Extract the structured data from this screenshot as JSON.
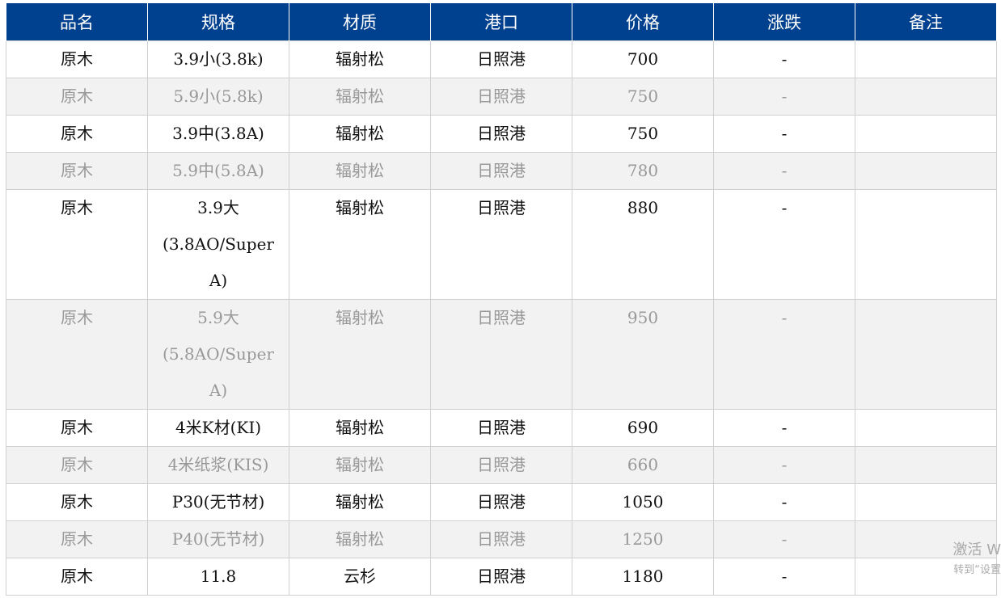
{
  "table": {
    "header": [
      "品名",
      "规格",
      "材质",
      "港口",
      "价格",
      "涨跌",
      "备注"
    ],
    "rows": [
      [
        "原木",
        "3.9小(3.8k)",
        "辐射松",
        "日照港",
        "700",
        "-"
      ],
      [
        "原木",
        "5.9小(5.8k)",
        "辐射松",
        "日照港",
        "750",
        "-"
      ],
      [
        "原木",
        "3.9中(3.8A)",
        "辐射松",
        "日照港",
        "750",
        "-"
      ],
      [
        "原木",
        "5.9中(5.8A)",
        "辐射松",
        "日照港",
        "780",
        "-"
      ],
      [
        "原木",
        "3.9大(3.8AO/Super A)",
        "辐射松",
        "日照港",
        "880",
        "-"
      ],
      [
        "原木",
        "5.9大(5.8AO/Super A)",
        "辐射松",
        "日照港",
        "950",
        "-"
      ],
      [
        "原木",
        "4米K材(KI)",
        "辐射松",
        "日照港",
        "690",
        "-"
      ],
      [
        "原木",
        "4米纸浆(KIS)",
        "辐射松",
        "日照港",
        "660",
        "-"
      ],
      [
        "原木",
        "P30(无节材)",
        "辐射松",
        "日照港",
        "1050",
        "-"
      ],
      [
        "原木",
        "P40(无节材)",
        "辐射松",
        "日照港",
        "1250",
        "-"
      ],
      [
        "原木",
        "11.8",
        "云杉",
        "日照港",
        "1180",
        "-"
      ]
    ]
  },
  "watermark": {
    "line1": "激活 W",
    "line2": "转到“设置"
  }
}
